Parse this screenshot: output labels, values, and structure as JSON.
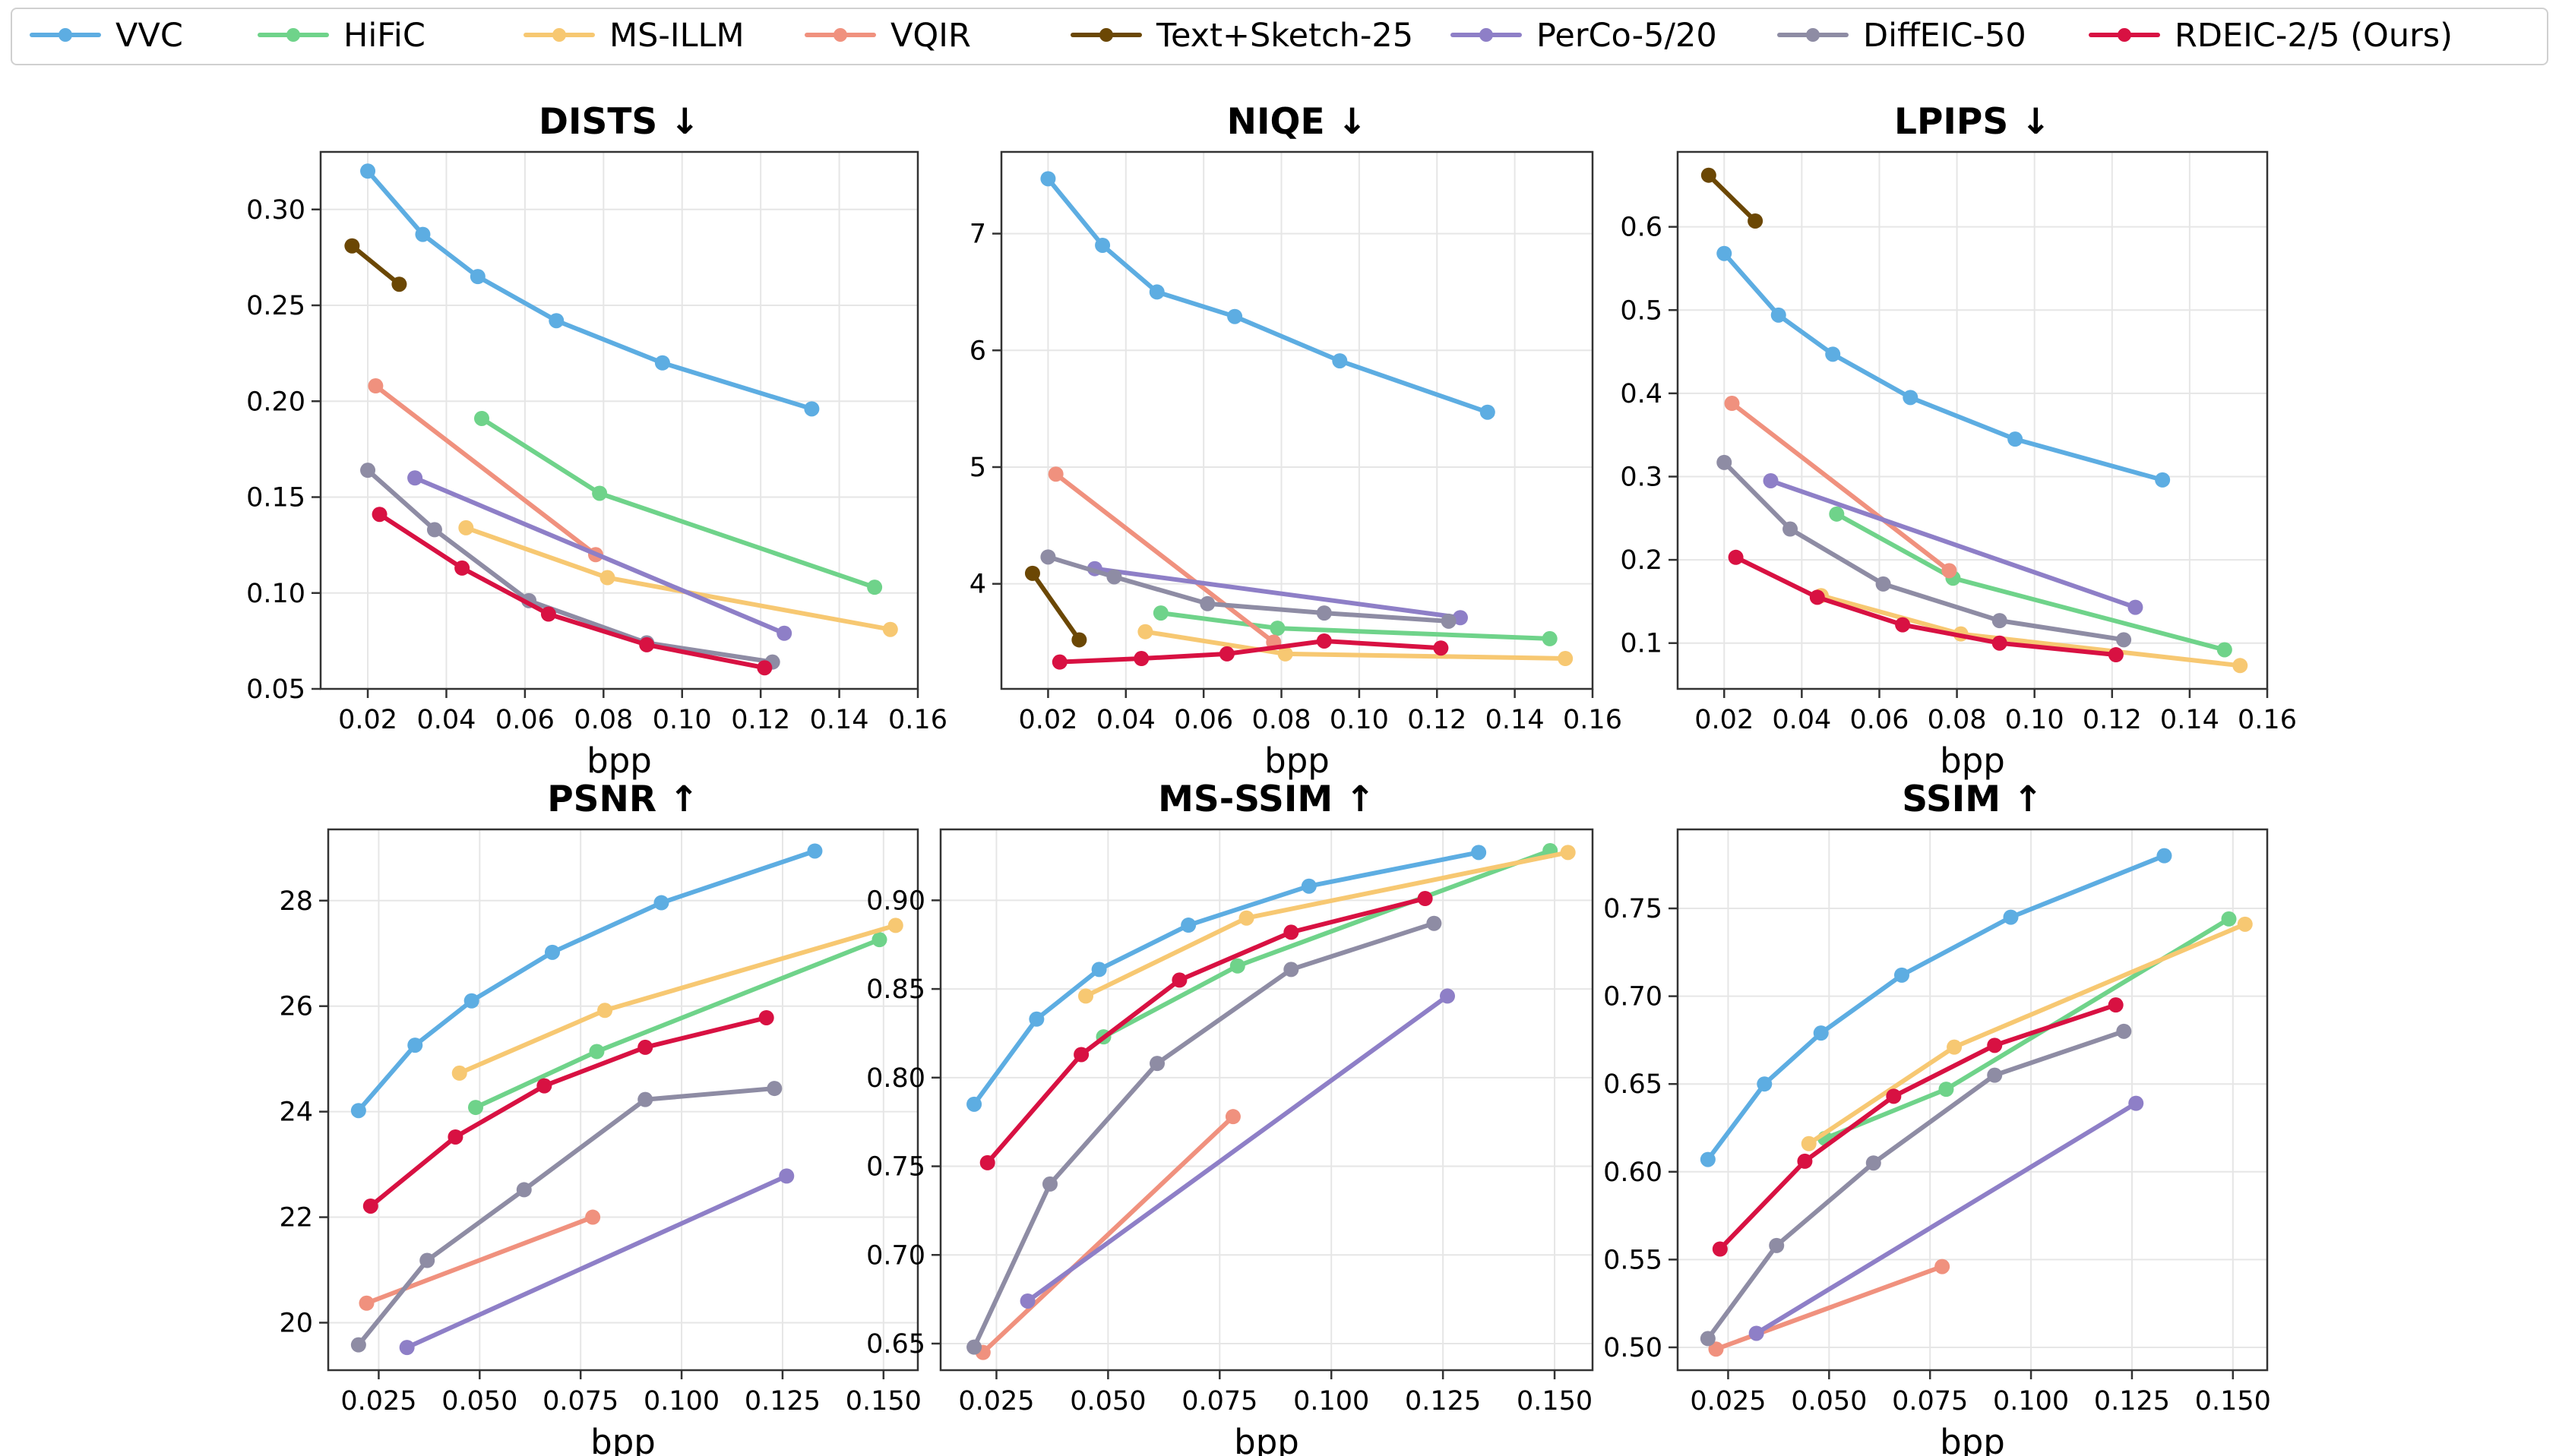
{
  "colors": {
    "VVC": "#5dade2",
    "HiFiC": "#6fd38a",
    "MS-ILLM": "#f7c872",
    "VQIR": "#f0917e",
    "Text+Sketch-25": "#6b4704",
    "PerCo-5/20": "#8e7fc7",
    "DiffEIC-50": "#8e8ca4",
    "RDEIC-2/5 (Ours)": "#d81142"
  },
  "legend": {
    "placement": "top",
    "entries": [
      "VVC",
      "HiFiC",
      "MS-ILLM",
      "VQIR",
      "Text+Sketch-25",
      "PerCo-5/20",
      "DiffEIC-50",
      "RDEIC-2/5 (Ours)"
    ]
  },
  "chart_data": [
    {
      "type": "line",
      "title": "DISTS ↓",
      "xlabel": "bpp",
      "ylabel": "",
      "grid": true,
      "xlim": [
        0.008,
        0.16
      ],
      "ylim": [
        0.05,
        0.33
      ],
      "xticks": [
        "0.02",
        "0.04",
        "0.06",
        "0.08",
        "0.10",
        "0.12",
        "0.14",
        "0.16"
      ],
      "xtick_values": [
        0.02,
        0.04,
        0.06,
        0.08,
        0.1,
        0.12,
        0.14,
        0.16
      ],
      "yticks": [
        "0.05",
        "0.10",
        "0.15",
        "0.20",
        "0.25",
        "0.30"
      ],
      "ytick_values": [
        0.05,
        0.1,
        0.15,
        0.2,
        0.25,
        0.3
      ],
      "series": [
        {
          "name": "VVC",
          "x": [
            0.02,
            0.034,
            0.048,
            0.068,
            0.095,
            0.133
          ],
          "y": [
            0.32,
            0.287,
            0.265,
            0.242,
            0.22,
            0.196
          ]
        },
        {
          "name": "HiFiC",
          "x": [
            0.049,
            0.079,
            0.149
          ],
          "y": [
            0.191,
            0.152,
            0.103
          ]
        },
        {
          "name": "MS-ILLM",
          "x": [
            0.045,
            0.081,
            0.153
          ],
          "y": [
            0.134,
            0.108,
            0.081
          ]
        },
        {
          "name": "VQIR",
          "x": [
            0.022,
            0.078
          ],
          "y": [
            0.208,
            0.12
          ]
        },
        {
          "name": "Text+Sketch-25",
          "x": [
            0.016,
            0.028
          ],
          "y": [
            0.281,
            0.261
          ]
        },
        {
          "name": "PerCo-5/20",
          "x": [
            0.032,
            0.126
          ],
          "y": [
            0.16,
            0.079
          ]
        },
        {
          "name": "DiffEIC-50",
          "x": [
            0.02,
            0.037,
            0.061,
            0.091,
            0.123
          ],
          "y": [
            0.164,
            0.133,
            0.096,
            0.074,
            0.064
          ]
        },
        {
          "name": "RDEIC-2/5 (Ours)",
          "x": [
            0.023,
            0.044,
            0.066,
            0.091,
            0.121
          ],
          "y": [
            0.141,
            0.113,
            0.089,
            0.073,
            0.061
          ]
        }
      ]
    },
    {
      "type": "line",
      "title": "NIQE ↓",
      "xlabel": "bpp",
      "ylabel": "",
      "grid": true,
      "xlim": [
        0.008,
        0.16
      ],
      "ylim": [
        3.1,
        7.7
      ],
      "xticks": [
        "0.02",
        "0.04",
        "0.06",
        "0.08",
        "0.10",
        "0.12",
        "0.14",
        "0.16"
      ],
      "xtick_values": [
        0.02,
        0.04,
        0.06,
        0.08,
        0.1,
        0.12,
        0.14,
        0.16
      ],
      "yticks": [
        "4",
        "5",
        "6",
        "7"
      ],
      "ytick_values": [
        4,
        5,
        6,
        7
      ],
      "series": [
        {
          "name": "VVC",
          "x": [
            0.02,
            0.034,
            0.048,
            0.068,
            0.095,
            0.133
          ],
          "y": [
            7.47,
            6.9,
            6.5,
            6.29,
            5.91,
            5.47
          ]
        },
        {
          "name": "HiFiC",
          "x": [
            0.049,
            0.079,
            0.149
          ],
          "y": [
            3.75,
            3.62,
            3.53
          ]
        },
        {
          "name": "MS-ILLM",
          "x": [
            0.045,
            0.081,
            0.153
          ],
          "y": [
            3.59,
            3.4,
            3.36
          ]
        },
        {
          "name": "VQIR",
          "x": [
            0.022,
            0.078
          ],
          "y": [
            4.94,
            3.5
          ]
        },
        {
          "name": "Text+Sketch-25",
          "x": [
            0.016,
            0.028
          ],
          "y": [
            4.09,
            3.52
          ]
        },
        {
          "name": "PerCo-5/20",
          "x": [
            0.032,
            0.126
          ],
          "y": [
            4.13,
            3.71
          ]
        },
        {
          "name": "DiffEIC-50",
          "x": [
            0.02,
            0.037,
            0.061,
            0.091,
            0.123
          ],
          "y": [
            4.23,
            4.06,
            3.83,
            3.75,
            3.68
          ]
        },
        {
          "name": "RDEIC-2/5 (Ours)",
          "x": [
            0.023,
            0.044,
            0.066,
            0.091,
            0.121
          ],
          "y": [
            3.33,
            3.36,
            3.4,
            3.51,
            3.45
          ]
        }
      ]
    },
    {
      "type": "line",
      "title": "LPIPS ↓",
      "xlabel": "bpp",
      "ylabel": "",
      "grid": true,
      "xlim": [
        0.008,
        0.16
      ],
      "ylim": [
        0.045,
        0.69
      ],
      "xticks": [
        "0.02",
        "0.04",
        "0.06",
        "0.08",
        "0.10",
        "0.12",
        "0.14",
        "0.16"
      ],
      "xtick_values": [
        0.02,
        0.04,
        0.06,
        0.08,
        0.1,
        0.12,
        0.14,
        0.16
      ],
      "yticks": [
        "0.1",
        "0.2",
        "0.3",
        "0.4",
        "0.5",
        "0.6"
      ],
      "ytick_values": [
        0.1,
        0.2,
        0.3,
        0.4,
        0.5,
        0.6
      ],
      "series": [
        {
          "name": "VVC",
          "x": [
            0.02,
            0.034,
            0.048,
            0.068,
            0.095,
            0.133
          ],
          "y": [
            0.568,
            0.494,
            0.447,
            0.395,
            0.345,
            0.296
          ]
        },
        {
          "name": "HiFiC",
          "x": [
            0.049,
            0.079,
            0.149
          ],
          "y": [
            0.255,
            0.178,
            0.092
          ]
        },
        {
          "name": "MS-ILLM",
          "x": [
            0.045,
            0.081,
            0.153
          ],
          "y": [
            0.157,
            0.111,
            0.073
          ]
        },
        {
          "name": "VQIR",
          "x": [
            0.022,
            0.078
          ],
          "y": [
            0.388,
            0.187
          ]
        },
        {
          "name": "Text+Sketch-25",
          "x": [
            0.016,
            0.028
          ],
          "y": [
            0.662,
            0.607
          ]
        },
        {
          "name": "PerCo-5/20",
          "x": [
            0.032,
            0.126
          ],
          "y": [
            0.295,
            0.143
          ]
        },
        {
          "name": "DiffEIC-50",
          "x": [
            0.02,
            0.037,
            0.061,
            0.091,
            0.123
          ],
          "y": [
            0.317,
            0.237,
            0.171,
            0.127,
            0.104
          ]
        },
        {
          "name": "RDEIC-2/5 (Ours)",
          "x": [
            0.023,
            0.044,
            0.066,
            0.091,
            0.121
          ],
          "y": [
            0.203,
            0.155,
            0.122,
            0.1,
            0.086
          ]
        }
      ]
    },
    {
      "type": "line",
      "title": "PSNR ↑",
      "xlabel": "bpp",
      "ylabel": "",
      "grid": true,
      "xlim": [
        0.0125,
        0.1585
      ],
      "ylim": [
        19.1,
        29.35
      ],
      "xticks": [
        "0.025",
        "0.050",
        "0.075",
        "0.100",
        "0.125",
        "0.150"
      ],
      "xtick_values": [
        0.025,
        0.05,
        0.075,
        0.1,
        0.125,
        0.15
      ],
      "yticks": [
        "20",
        "22",
        "24",
        "26",
        "28"
      ],
      "ytick_values": [
        20,
        22,
        24,
        26,
        28
      ],
      "series": [
        {
          "name": "VVC",
          "x": [
            0.02,
            0.034,
            0.048,
            0.068,
            0.095,
            0.133
          ],
          "y": [
            24.02,
            25.26,
            26.1,
            27.02,
            27.96,
            28.94
          ]
        },
        {
          "name": "HiFiC",
          "x": [
            0.049,
            0.079,
            0.149
          ],
          "y": [
            24.08,
            25.14,
            27.26
          ]
        },
        {
          "name": "MS-ILLM",
          "x": [
            0.045,
            0.081,
            0.153
          ],
          "y": [
            24.73,
            25.92,
            27.53
          ]
        },
        {
          "name": "VQIR",
          "x": [
            0.022,
            0.078
          ],
          "y": [
            20.37,
            22.0
          ]
        },
        {
          "name": "PerCo-5/20",
          "x": [
            0.032,
            0.126
          ],
          "y": [
            19.53,
            22.78
          ]
        },
        {
          "name": "DiffEIC-50",
          "x": [
            0.02,
            0.037,
            0.061,
            0.091,
            0.123
          ],
          "y": [
            19.58,
            21.18,
            22.52,
            24.23,
            24.44
          ]
        },
        {
          "name": "RDEIC-2/5 (Ours)",
          "x": [
            0.023,
            0.044,
            0.066,
            0.091,
            0.121
          ],
          "y": [
            22.21,
            23.52,
            24.49,
            25.22,
            25.78
          ]
        }
      ]
    },
    {
      "type": "line",
      "title": "MS-SSIM ↑",
      "xlabel": "bpp",
      "ylabel": "",
      "grid": true,
      "xlim": [
        0.0125,
        0.1585
      ],
      "ylim": [
        0.635,
        0.94
      ],
      "xticks": [
        "0.025",
        "0.050",
        "0.075",
        "0.100",
        "0.125",
        "0.150"
      ],
      "xtick_values": [
        0.025,
        0.05,
        0.075,
        0.1,
        0.125,
        0.15
      ],
      "yticks": [
        "0.65",
        "0.70",
        "0.75",
        "0.80",
        "0.85",
        "0.90"
      ],
      "ytick_values": [
        0.65,
        0.7,
        0.75,
        0.8,
        0.85,
        0.9
      ],
      "series": [
        {
          "name": "VVC",
          "x": [
            0.02,
            0.034,
            0.048,
            0.068,
            0.095,
            0.133
          ],
          "y": [
            0.785,
            0.833,
            0.861,
            0.886,
            0.908,
            0.927
          ]
        },
        {
          "name": "HiFiC",
          "x": [
            0.049,
            0.079,
            0.149
          ],
          "y": [
            0.823,
            0.863,
            0.928
          ]
        },
        {
          "name": "MS-ILLM",
          "x": [
            0.045,
            0.081,
            0.153
          ],
          "y": [
            0.846,
            0.89,
            0.927
          ]
        },
        {
          "name": "VQIR",
          "x": [
            0.022,
            0.078
          ],
          "y": [
            0.645,
            0.778
          ]
        },
        {
          "name": "PerCo-5/20",
          "x": [
            0.032,
            0.126
          ],
          "y": [
            0.674,
            0.846
          ]
        },
        {
          "name": "DiffEIC-50",
          "x": [
            0.02,
            0.037,
            0.061,
            0.091,
            0.123
          ],
          "y": [
            0.648,
            0.74,
            0.808,
            0.861,
            0.887
          ]
        },
        {
          "name": "RDEIC-2/5 (Ours)",
          "x": [
            0.023,
            0.044,
            0.066,
            0.091,
            0.121
          ],
          "y": [
            0.752,
            0.813,
            0.855,
            0.882,
            0.901
          ]
        }
      ]
    },
    {
      "type": "line",
      "title": "SSIM ↑",
      "xlabel": "bpp",
      "ylabel": "",
      "grid": true,
      "xlim": [
        0.0125,
        0.1585
      ],
      "ylim": [
        0.487,
        0.795
      ],
      "xticks": [
        "0.025",
        "0.050",
        "0.075",
        "0.100",
        "0.125",
        "0.150"
      ],
      "xtick_values": [
        0.025,
        0.05,
        0.075,
        0.1,
        0.125,
        0.15
      ],
      "yticks": [
        "0.50",
        "0.55",
        "0.60",
        "0.65",
        "0.70",
        "0.75"
      ],
      "ytick_values": [
        0.5,
        0.55,
        0.6,
        0.65,
        0.7,
        0.75
      ],
      "series": [
        {
          "name": "VVC",
          "x": [
            0.02,
            0.034,
            0.048,
            0.068,
            0.095,
            0.133
          ],
          "y": [
            0.607,
            0.65,
            0.679,
            0.712,
            0.745,
            0.78
          ]
        },
        {
          "name": "HiFiC",
          "x": [
            0.049,
            0.079,
            0.149
          ],
          "y": [
            0.619,
            0.647,
            0.744
          ]
        },
        {
          "name": "MS-ILLM",
          "x": [
            0.045,
            0.081,
            0.153
          ],
          "y": [
            0.616,
            0.671,
            0.741
          ]
        },
        {
          "name": "VQIR",
          "x": [
            0.022,
            0.078
          ],
          "y": [
            0.499,
            0.546
          ]
        },
        {
          "name": "PerCo-5/20",
          "x": [
            0.032,
            0.126
          ],
          "y": [
            0.508,
            0.639
          ]
        },
        {
          "name": "DiffEIC-50",
          "x": [
            0.02,
            0.037,
            0.061,
            0.091,
            0.123
          ],
          "y": [
            0.505,
            0.558,
            0.605,
            0.655,
            0.68
          ]
        },
        {
          "name": "RDEIC-2/5 (Ours)",
          "x": [
            0.023,
            0.044,
            0.066,
            0.091,
            0.121
          ],
          "y": [
            0.556,
            0.606,
            0.643,
            0.672,
            0.695
          ]
        }
      ]
    }
  ]
}
